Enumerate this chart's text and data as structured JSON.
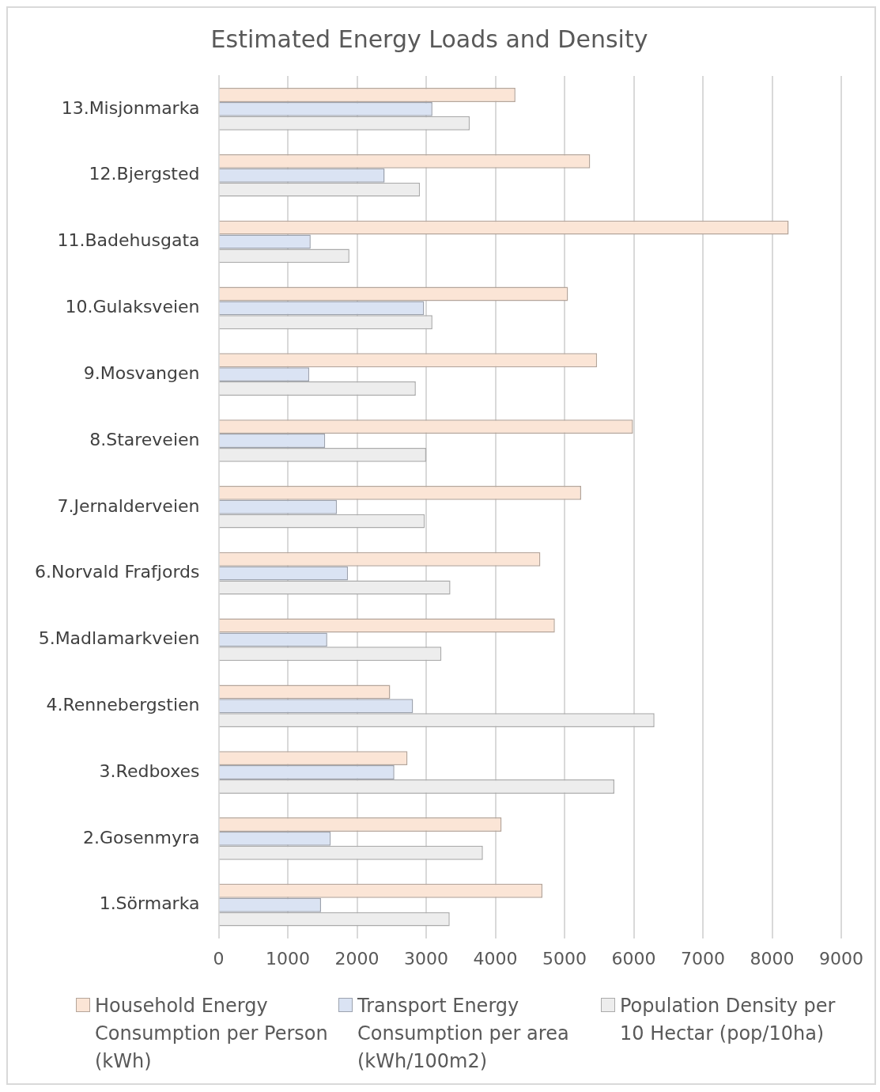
{
  "chart_data": {
    "type": "bar",
    "orientation": "horizontal",
    "title": "Estimated Energy Loads and Density",
    "categories": [
      "13.Misjonmarka",
      "12.Bjergsted",
      "11.Badehusgata",
      "10.Gulaksveien",
      "9.Mosvangen",
      "8.Stareveien",
      "7.Jernalderveien",
      "6.Norvald Frafjords",
      "5.Madlamarkveien",
      "4.Rennebergstien",
      "3.Redboxes",
      "2.Gosenmyra",
      "1.Sörmarka"
    ],
    "series": [
      {
        "name": "Household Energy Consumption per Person (kWh)",
        "color": "#fbe5d6",
        "values": [
          4290,
          5370,
          8240,
          5050,
          5470,
          5990,
          5240,
          4650,
          4860,
          2480,
          2730,
          4090,
          4680
        ]
      },
      {
        "name": "Transport Energy Consumption per area (kWh/100m2)",
        "color": "#dae3f3",
        "values": [
          3090,
          2400,
          1330,
          2970,
          1310,
          1540,
          1710,
          1870,
          1570,
          2810,
          2540,
          1620,
          1480
        ]
      },
      {
        "name": "Population Density per 10 Hectar (pop/10ha)",
        "color": "#ededed",
        "values": [
          3630,
          2910,
          1890,
          3090,
          2850,
          3000,
          2980,
          3350,
          3220,
          6300,
          5720,
          3820,
          3340
        ]
      }
    ],
    "xlim": [
      0,
      9000
    ],
    "xticks": [
      0,
      1000,
      2000,
      3000,
      4000,
      5000,
      6000,
      7000,
      8000,
      9000
    ],
    "grid": "x",
    "legend": "bottom"
  }
}
